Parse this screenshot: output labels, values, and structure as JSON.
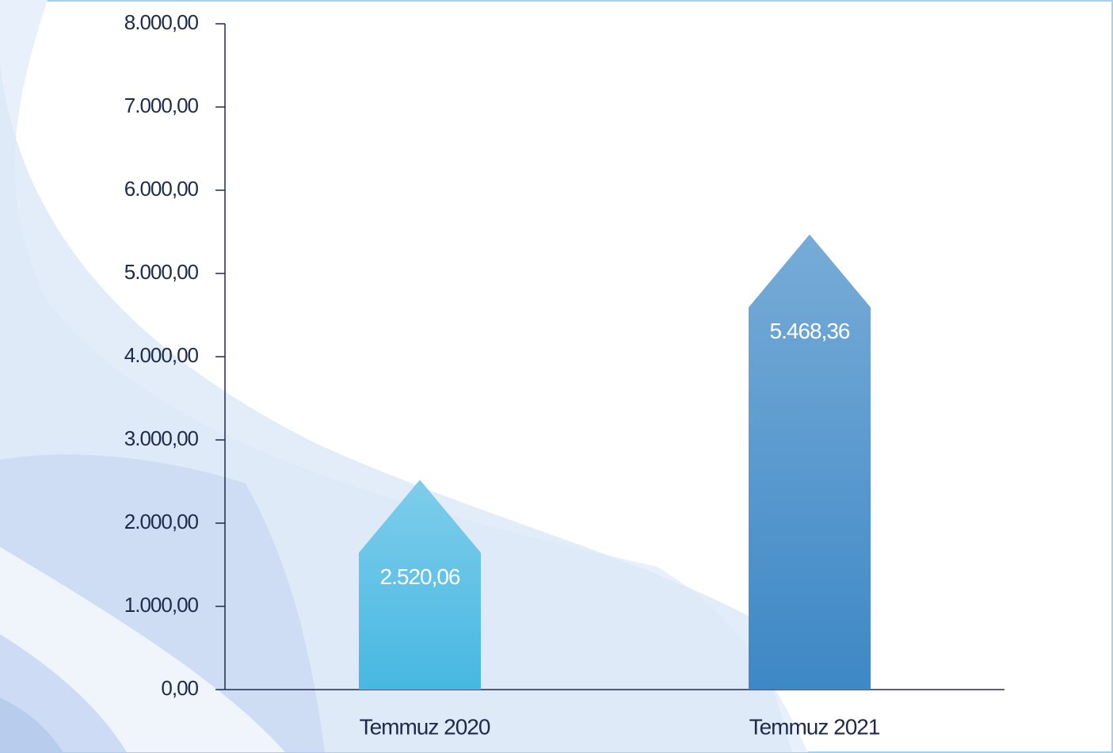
{
  "chart_data": {
    "type": "bar",
    "categories": [
      "Temmuz 2020",
      "Temmuz 2021"
    ],
    "values": [
      2520.06,
      5468.36
    ],
    "value_labels": [
      "2.520,06",
      "5.468,36"
    ],
    "colors": [
      "#47b8e2",
      "#3d88c6"
    ],
    "ylim": [
      0,
      8000
    ],
    "yticks": [
      {
        "value": 0,
        "label": "0,00"
      },
      {
        "value": 1000,
        "label": "1.000,00"
      },
      {
        "value": 2000,
        "label": "2.000,00"
      },
      {
        "value": 3000,
        "label": "3.000,00"
      },
      {
        "value": 4000,
        "label": "4.000,00"
      },
      {
        "value": 5000,
        "label": "5.000,00"
      },
      {
        "value": 6000,
        "label": "6.000,00"
      },
      {
        "value": 7000,
        "label": "7.000,00"
      },
      {
        "value": 8000,
        "label": "8.000,00"
      }
    ],
    "grid": false
  }
}
